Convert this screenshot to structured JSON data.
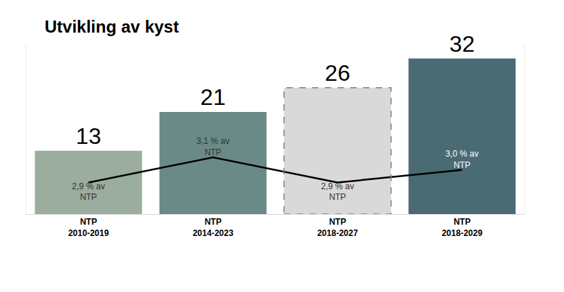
{
  "chart_data": {
    "type": "bar",
    "title": "Utvikling av kyst",
    "categories": [
      "NTP\n2010-2019",
      "NTP\n2014-2023",
      "NTP\n2018-2027",
      "NTP\n2018-2029"
    ],
    "series": [
      {
        "type": "bar",
        "values": [
          13,
          21,
          26,
          32
        ],
        "colors": [
          "#9aad9e",
          "#6a8a87",
          "#d9d9d9",
          "#4a6a74"
        ],
        "line_style": [
          "solid",
          "solid",
          "dashed",
          "solid"
        ]
      },
      {
        "type": "line",
        "axis": "y2",
        "color": "#000000",
        "values": [
          2.9,
          3.1,
          2.9,
          3.0
        ],
        "value_labels": [
          "2,9 % av\nNTP",
          "3,1 % av\nNTP",
          "2,9 % av\nNTP",
          "3,0 % av\nNTP"
        ]
      }
    ],
    "ylim": [
      0,
      35
    ],
    "y2lim": [
      2.65,
      4.0
    ],
    "grid": false,
    "data_labels": true,
    "tick_labels": "x"
  }
}
